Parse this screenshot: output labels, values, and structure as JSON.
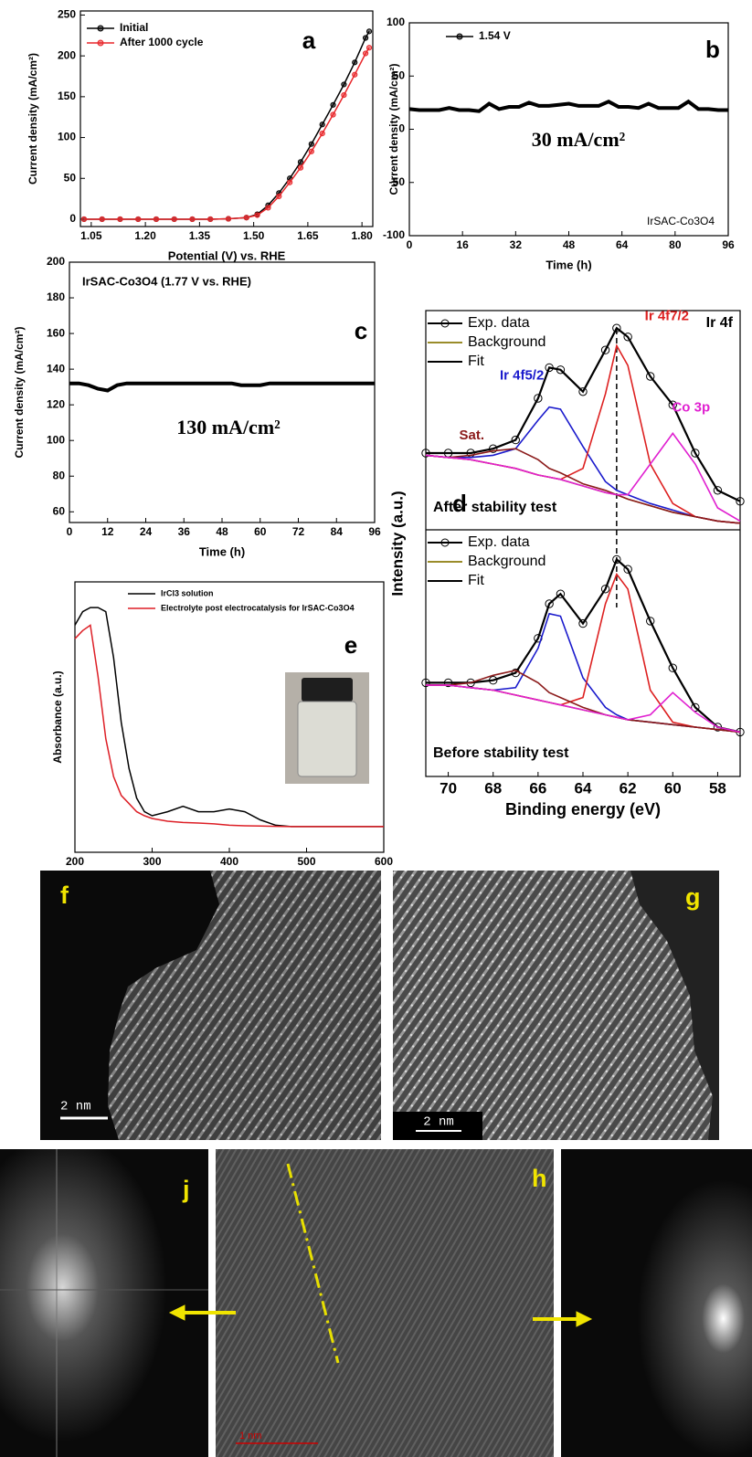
{
  "chart_data": [
    {
      "type": "line",
      "label": "a",
      "xlabel": "Potential (V) vs. RHE",
      "ylabel": "Current density (mA/cm²)",
      "x": [
        1.03,
        1.08,
        1.13,
        1.18,
        1.23,
        1.28,
        1.33,
        1.38,
        1.43,
        1.48,
        1.51,
        1.54,
        1.57,
        1.6,
        1.63,
        1.66,
        1.69,
        1.72,
        1.75,
        1.78,
        1.81,
        1.82
      ],
      "xlim": [
        1.02,
        1.83
      ],
      "xticks": [
        1.05,
        {
          "value": 1.2,
          "label": "1.20"
        },
        1.35,
        {
          "value": 1.5,
          "label": "1.50"
        },
        1.65,
        {
          "value": 1.8,
          "label": "1.80"
        }
      ],
      "ylim": [
        -9,
        255
      ],
      "yticks": [
        0,
        50,
        100,
        150,
        200,
        250
      ],
      "markers": true,
      "legend": "upper left",
      "series": [
        {
          "name": "Initial",
          "color": "#000000",
          "values": [
            0,
            0,
            0,
            0,
            0,
            0,
            0,
            0,
            0.5,
            2,
            6,
            17,
            32,
            50,
            70,
            92,
            116,
            140,
            165,
            192,
            222,
            230
          ]
        },
        {
          "name": "After 1000 cycle",
          "color": "#e8262a",
          "values": [
            0,
            0,
            0,
            0,
            0,
            0,
            0,
            0,
            0.5,
            2,
            5,
            14,
            28,
            45,
            63,
            83,
            105,
            128,
            152,
            177,
            203,
            210
          ]
        }
      ]
    },
    {
      "type": "line",
      "label": "b",
      "xlabel": "Time (h)",
      "ylabel": "Current density (mA/cm²)",
      "annotations": [
        "30 mA/cm²",
        "IrSAC-Co3O4"
      ],
      "x": [
        0,
        3,
        6,
        9,
        12,
        15,
        18,
        21,
        24,
        27,
        30,
        33,
        36,
        39,
        42,
        45,
        48,
        51,
        54,
        57,
        60,
        63,
        66,
        69,
        72,
        75,
        78,
        81,
        84,
        87,
        90,
        93,
        96
      ],
      "xlim": [
        0,
        96
      ],
      "xticks": [
        0,
        16,
        32,
        48,
        64,
        80,
        96
      ],
      "ylim": [
        -100,
        100
      ],
      "yticks": [
        -100,
        -50,
        0,
        50,
        100
      ],
      "markers": false,
      "legend": "upper left",
      "series": [
        {
          "name": "1.54 V",
          "color": "#000000",
          "values": [
            19,
            18,
            18,
            18,
            20,
            18,
            18,
            17,
            24,
            19,
            21,
            21,
            25,
            22,
            22,
            23,
            24,
            22,
            22,
            22,
            26,
            21,
            21,
            20,
            24,
            20,
            20,
            20,
            26,
            19,
            19,
            18,
            18
          ]
        }
      ]
    },
    {
      "type": "line",
      "label": "c",
      "title": "IrSAC-Co3O4 (1.77 V vs. RHE)",
      "xlabel": "Time (h)",
      "ylabel": "Current density (mA/cm²)",
      "annotations": [
        "130 mA/cm²"
      ],
      "x": [
        0,
        3,
        6,
        9,
        12,
        15,
        18,
        21,
        24,
        27,
        30,
        33,
        36,
        39,
        42,
        45,
        48,
        51,
        54,
        57,
        60,
        63,
        66,
        69,
        72,
        75,
        78,
        81,
        84,
        87,
        90,
        93,
        96
      ],
      "xlim": [
        0,
        96
      ],
      "xticks": [
        0,
        12,
        24,
        36,
        48,
        60,
        72,
        84,
        96
      ],
      "ylim": [
        54,
        200
      ],
      "yticks": [
        60,
        80,
        100,
        120,
        140,
        160,
        180,
        200
      ],
      "markers": false,
      "series": [
        {
          "color": "#000000",
          "values": [
            132,
            132,
            131,
            129,
            128,
            131,
            132,
            132,
            132,
            132,
            132,
            132,
            132,
            132,
            132,
            132,
            132,
            132,
            131,
            131,
            131,
            132,
            132,
            132,
            132,
            132,
            132,
            132,
            132,
            132,
            132,
            132,
            132
          ]
        }
      ]
    },
    {
      "type": "line",
      "label": "d",
      "xlabel": "Binding energy (eV)",
      "ylabel": "Intensity (a.u.)",
      "corner_label": "Ir 4f",
      "x": [
        71,
        70,
        69,
        68,
        67,
        66,
        65.5,
        65,
        64,
        63,
        62.5,
        62,
        61,
        60,
        59,
        58,
        57
      ],
      "xlim": [
        71,
        57
      ],
      "xticks": [
        70,
        68,
        66,
        64,
        62,
        60,
        58
      ],
      "panels": [
        {
          "title": "After stability test",
          "ylim": [
            0,
            100
          ],
          "series": [
            {
              "name": "Exp. data",
              "color": "#000000",
              "values": [
                35,
                35,
                35,
                37,
                41,
                60,
                74,
                73,
                63,
                82,
                92,
                88,
                70,
                57,
                35,
                18,
                13
              ]
            },
            {
              "name": "Background",
              "color": "#9a8c2a",
              "values": [
                34,
                33,
                32,
                30,
                28,
                25,
                24,
                23,
                20,
                17,
                16,
                14,
                11,
                8,
                6,
                4,
                3
              ]
            },
            {
              "name": "Fit",
              "color": "#000000",
              "values": [
                35,
                35,
                35,
                37,
                41,
                60,
                74,
                73,
                63,
                82,
                92,
                88,
                70,
                57,
                35,
                18,
                13
              ]
            },
            {
              "name": "Ir 4f5/2",
              "color": "#1a1acc",
              "values": [
                34,
                33,
                33,
                34,
                37,
                50,
                56,
                55,
                38,
                22,
                18,
                16,
                12,
                9,
                6,
                4,
                3
              ]
            },
            {
              "name": "Ir 4f7/2",
              "color": "#dd2020",
              "values": [
                34,
                33,
                32,
                30,
                28,
                25,
                24,
                23,
                28,
                62,
                84,
                75,
                30,
                12,
                6,
                4,
                3
              ]
            },
            {
              "name": "Sat.",
              "color": "#8b1a1a",
              "values": [
                34,
                33,
                34,
                36,
                37,
                32,
                28,
                26,
                21,
                18,
                16,
                14,
                11,
                8,
                6,
                4,
                3
              ]
            },
            {
              "name": "Co 3p",
              "color": "#e020d0",
              "values": [
                34,
                33,
                32,
                30,
                28,
                25,
                24,
                23,
                20,
                17,
                16,
                16,
                30,
                44,
                30,
                10,
                4
              ]
            }
          ]
        },
        {
          "title": "Before stability test",
          "ylim": [
            0,
            100
          ],
          "series": [
            {
              "name": "Exp. data",
              "color": "#000000",
              "values": [
                38,
                38,
                38,
                39,
                42,
                56,
                70,
                74,
                62,
                76,
                88,
                84,
                63,
                44,
                28,
                20,
                18
              ]
            },
            {
              "name": "Background",
              "color": "#9a8c2a",
              "values": [
                37,
                37,
                36,
                35,
                33,
                31,
                30,
                29,
                27,
                25,
                24,
                23,
                22,
                21,
                20,
                19,
                18
              ]
            },
            {
              "name": "Fit",
              "color": "#000000",
              "values": [
                38,
                38,
                38,
                39,
                42,
                56,
                70,
                74,
                62,
                76,
                88,
                84,
                63,
                44,
                28,
                20,
                18
              ]
            },
            {
              "color": "#1a1acc",
              "values": [
                37,
                37,
                36,
                35,
                36,
                52,
                66,
                65,
                40,
                28,
                25,
                23,
                22,
                21,
                20,
                19,
                18
              ]
            },
            {
              "color": "#dd2020",
              "values": [
                37,
                37,
                36,
                35,
                33,
                31,
                30,
                29,
                32,
                70,
                82,
                76,
                35,
                22,
                20,
                19,
                18
              ]
            },
            {
              "color": "#8b1a1a",
              "values": [
                37,
                37,
                38,
                41,
                43,
                38,
                34,
                32,
                28,
                25,
                24,
                23,
                22,
                21,
                20,
                19,
                18
              ]
            },
            {
              "color": "#e020d0",
              "values": [
                37,
                37,
                36,
                35,
                33,
                31,
                30,
                29,
                27,
                25,
                24,
                23,
                25,
                34,
                26,
                20,
                18
              ]
            }
          ]
        }
      ]
    },
    {
      "type": "line",
      "label": "e",
      "ylabel": "Absorbance (a.u.)",
      "x": [
        200,
        210,
        220,
        230,
        240,
        250,
        260,
        270,
        280,
        290,
        300,
        320,
        340,
        360,
        380,
        400,
        420,
        440,
        460,
        480,
        500,
        600
      ],
      "xlim": [
        200,
        600
      ],
      "xticks": [
        200,
        300,
        400,
        500,
        600
      ],
      "ylim": [
        0,
        100
      ],
      "markers": false,
      "legend": "upper left",
      "series": [
        {
          "name": "IrCl3 solution",
          "color": "#000000",
          "values": [
            84,
            89,
            90.5,
            90.5,
            89,
            72,
            48,
            31,
            20,
            15,
            13.5,
            15,
            17,
            15,
            15,
            16,
            15,
            12,
            10,
            9.5,
            9.5,
            9.5
          ]
        },
        {
          "name": "Electrolyte post electrocatalysis for IrSAC-Co3O4",
          "color": "#dd1f26",
          "values": [
            79,
            82,
            84,
            65,
            42,
            28,
            21,
            18,
            15,
            13.5,
            12.5,
            11.5,
            11,
            10.8,
            10.5,
            10,
            9.8,
            9.7,
            9.6,
            9.5,
            9.5,
            9.5
          ]
        }
      ]
    }
  ],
  "images": [
    {
      "label": "f",
      "scale": "2 nm"
    },
    {
      "label": "g",
      "scale": "2 nm"
    },
    {
      "label": "j"
    },
    {
      "label": "h",
      "scale": "1 nm"
    }
  ]
}
